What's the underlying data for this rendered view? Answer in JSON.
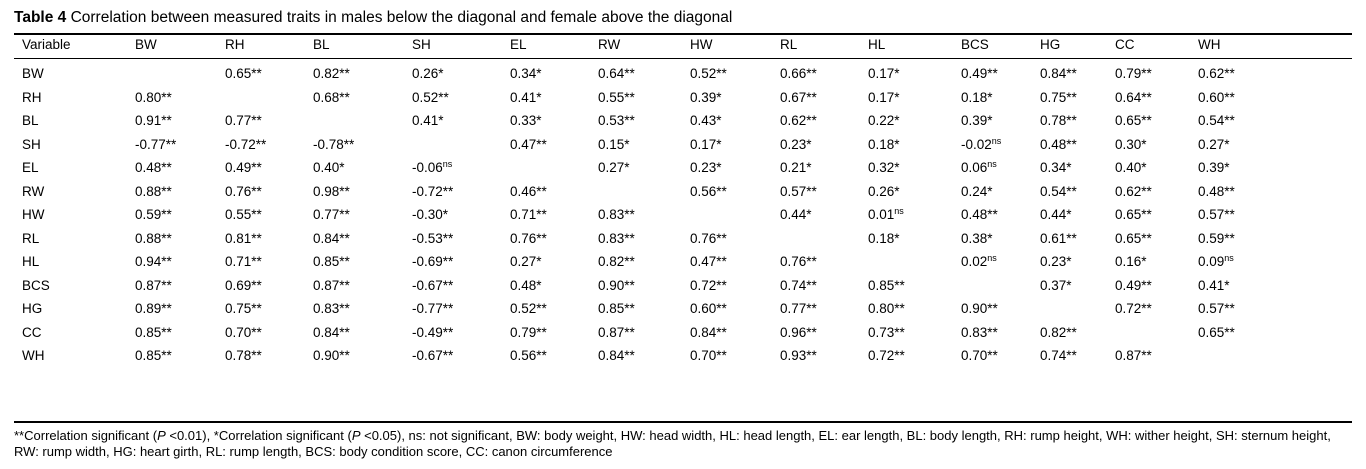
{
  "title": {
    "label": "Table 4",
    "text": "Correlation between measured traits in males below the diagonal and female above the diagonal"
  },
  "table": {
    "header": [
      "Variable",
      "BW",
      "RH",
      "BL",
      "SH",
      "EL",
      "RW",
      "HW",
      "RL",
      "HL",
      "BCS",
      "HG",
      "CC",
      "WH"
    ],
    "rows": [
      {
        "label": "BW",
        "cells": [
          null,
          "0.65**",
          "0.82**",
          "0.26*",
          "0.34*",
          "0.64**",
          "0.52**",
          "0.66**",
          "0.17*",
          "0.49**",
          "0.84**",
          "0.79**",
          "0.62**"
        ]
      },
      {
        "label": "RH",
        "cells": [
          "0.80**",
          null,
          "0.68**",
          "0.52**",
          "0.41*",
          "0.55**",
          "0.39*",
          "0.67**",
          "0.17*",
          "0.18*",
          "0.75**",
          "0.64**",
          "0.60**"
        ]
      },
      {
        "label": "BL",
        "cells": [
          "0.91**",
          "0.77**",
          null,
          "0.41*",
          "0.33*",
          "0.53**",
          "0.43*",
          "0.62**",
          "0.22*",
          "0.39*",
          "0.78**",
          "0.65**",
          "0.54**"
        ]
      },
      {
        "label": "SH",
        "cells": [
          "-0.77**",
          "-0.72**",
          "-0.78**",
          null,
          "0.47**",
          "0.15*",
          "0.17*",
          "0.23*",
          "0.18*",
          {
            "text": "-0.02",
            "sup": "ns"
          },
          "0.48**",
          "0.30*",
          "0.27*"
        ]
      },
      {
        "label": "EL",
        "cells": [
          "0.48**",
          "0.49**",
          "0.40*",
          {
            "text": "-0.06",
            "sup": "ns"
          },
          null,
          "0.27*",
          "0.23*",
          "0.21*",
          "0.32*",
          {
            "text": "0.06",
            "sup": "ns"
          },
          "0.34*",
          "0.40*",
          "0.39*"
        ]
      },
      {
        "label": "RW",
        "cells": [
          "0.88**",
          "0.76**",
          "0.98**",
          "-0.72**",
          "0.46**",
          null,
          "0.56**",
          "0.57**",
          "0.26*",
          "0.24*",
          "0.54**",
          "0.62**",
          "0.48**"
        ]
      },
      {
        "label": "HW",
        "cells": [
          "0.59**",
          "0.55**",
          "0.77**",
          "-0.30*",
          "0.71**",
          "0.83**",
          null,
          "0.44*",
          {
            "text": "0.01",
            "sup": "ns"
          },
          "0.48**",
          "0.44*",
          "0.65**",
          "0.57**"
        ]
      },
      {
        "label": "RL",
        "cells": [
          "0.88**",
          "0.81**",
          "0.84**",
          "-0.53**",
          "0.76**",
          "0.83**",
          "0.76**",
          null,
          "0.18*",
          "0.38*",
          "0.61**",
          "0.65**",
          "0.59**"
        ]
      },
      {
        "label": "HL",
        "cells": [
          "0.94**",
          "0.71**",
          "0.85**",
          "-0.69**",
          "0.27*",
          "0.82**",
          "0.47**",
          "0.76**",
          null,
          {
            "text": "0.02",
            "sup": "ns"
          },
          "0.23*",
          "0.16*",
          {
            "text": "0.09",
            "sup": "ns"
          }
        ]
      },
      {
        "label": "BCS",
        "cells": [
          "0.87**",
          "0.69**",
          "0.87**",
          "-0.67**",
          "0.48*",
          "0.90**",
          "0.72**",
          "0.74**",
          "0.85**",
          null,
          "0.37*",
          "0.49**",
          "0.41*"
        ]
      },
      {
        "label": "HG",
        "cells": [
          "0.89**",
          "0.75**",
          "0.83**",
          "-0.77**",
          "0.52**",
          "0.85**",
          "0.60**",
          "0.77**",
          "0.80**",
          "0.90**",
          null,
          "0.72**",
          "0.57**"
        ]
      },
      {
        "label": "CC",
        "cells": [
          "0.85**",
          "0.70**",
          "0.84**",
          "-0.49**",
          "0.79**",
          "0.87**",
          "0.84**",
          "0.96**",
          "0.73**",
          "0.83**",
          "0.82**",
          null,
          "0.65**"
        ]
      },
      {
        "label": "WH",
        "cells": [
          "0.85**",
          "0.78**",
          "0.90**",
          "-0.67**",
          "0.56**",
          "0.84**",
          "0.70**",
          "0.93**",
          "0.72**",
          "0.70**",
          "0.74**",
          "0.87**",
          null
        ]
      }
    ]
  },
  "footnote": [
    "**Correlation significant (",
    "P",
    " <0.01), *Correlation significant (",
    "P",
    " <0.05), ns: not significant, BW: body weight, HW: head width, HL: head length, EL: ear length, BL: body length, RH: rump height, WH: wither height, SH: sternum height, RW: rump width, HG: heart girth, RL: rump length, BCS: body condition score, CC: canon circumference"
  ]
}
